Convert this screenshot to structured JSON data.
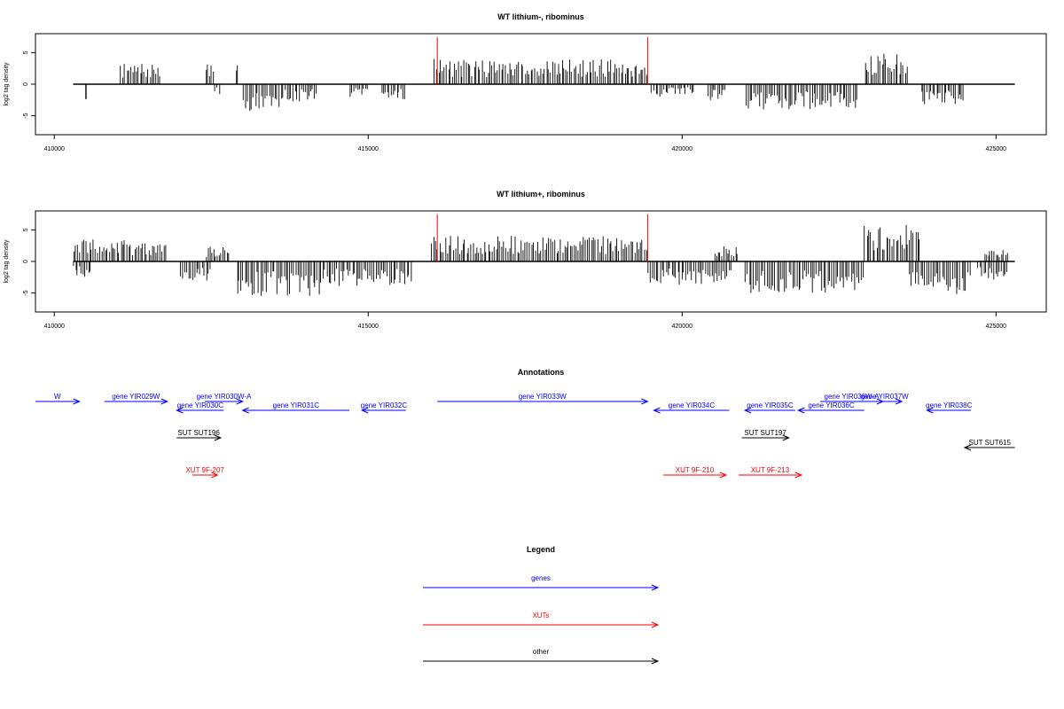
{
  "chart_data": [
    {
      "type": "bar",
      "title": "WT lithium-, ribominus",
      "xlabel": "",
      "ylabel": "log2 tag density",
      "xlim": [
        409700,
        425800
      ],
      "ylim": [
        -8,
        8
      ],
      "xticks": [
        410000,
        415000,
        420000,
        425000
      ],
      "yticks": [
        -5,
        0,
        5
      ],
      "x_range_drawn": [
        410300,
        425300
      ],
      "region_markers": [
        416100,
        419450
      ],
      "region_marker_color": "#ff0000",
      "bar_color": "#000000",
      "segments": [
        {
          "from": 410500,
          "to": 410510,
          "val": -2.0
        },
        {
          "from": 411050,
          "to": 411700,
          "val": 2.6
        },
        {
          "from": 412400,
          "to": 412550,
          "val": 2.5
        },
        {
          "from": 412550,
          "to": 412650,
          "val": -1.5
        },
        {
          "from": 412900,
          "to": 412920,
          "val": 2.6
        },
        {
          "from": 413000,
          "to": 413600,
          "val": -3.5
        },
        {
          "from": 413600,
          "to": 414200,
          "val": -2.2
        },
        {
          "from": 414700,
          "to": 415000,
          "val": -1.6
        },
        {
          "from": 415200,
          "to": 415600,
          "val": -2.0
        },
        {
          "from": 416050,
          "to": 419450,
          "val": 3.2
        },
        {
          "from": 419500,
          "to": 419700,
          "val": -2.0
        },
        {
          "from": 419700,
          "to": 420200,
          "val": -1.3
        },
        {
          "from": 420400,
          "to": 420700,
          "val": -2.0
        },
        {
          "from": 421000,
          "to": 422800,
          "val": -3.2
        },
        {
          "from": 422900,
          "to": 423600,
          "val": 4.0
        },
        {
          "from": 423800,
          "to": 424500,
          "val": -2.6
        }
      ],
      "seed": 7
    },
    {
      "type": "bar",
      "title": "WT lithium+, ribominus",
      "xlabel": "",
      "ylabel": "log2 tag density",
      "xlim": [
        409700,
        425800
      ],
      "ylim": [
        -8,
        8
      ],
      "xticks": [
        410000,
        415000,
        420000,
        425000
      ],
      "yticks": [
        -5,
        0,
        5
      ],
      "x_range_drawn": [
        410300,
        425300
      ],
      "region_markers": [
        416100,
        419450
      ],
      "region_marker_color": "#ff0000",
      "bar_color": "#000000",
      "segments": [
        {
          "from": 410300,
          "to": 410600,
          "val": -2.0
        },
        {
          "from": 410300,
          "to": 411800,
          "val": 2.8
        },
        {
          "from": 412000,
          "to": 412500,
          "val": -2.8
        },
        {
          "from": 412400,
          "to": 412800,
          "val": 2.0
        },
        {
          "from": 412900,
          "to": 414300,
          "val": -4.4
        },
        {
          "from": 414300,
          "to": 415700,
          "val": -3.2
        },
        {
          "from": 416000,
          "to": 419450,
          "val": 3.3
        },
        {
          "from": 419450,
          "to": 420800,
          "val": -3.0
        },
        {
          "from": 420500,
          "to": 420900,
          "val": 2.0
        },
        {
          "from": 421000,
          "to": 422900,
          "val": -4.0
        },
        {
          "from": 422900,
          "to": 423800,
          "val": 4.8
        },
        {
          "from": 423600,
          "to": 424600,
          "val": -4.2
        },
        {
          "from": 424700,
          "to": 425200,
          "val": -2.5
        },
        {
          "from": 424800,
          "to": 425200,
          "val": 1.5
        }
      ],
      "seed": 19
    }
  ],
  "annotations": {
    "title": "Annotations",
    "xlim": [
      409700,
      425800
    ],
    "genes": [
      {
        "label": "W",
        "from": 409700,
        "to": 410400,
        "dir": "right",
        "row": 0
      },
      {
        "label": "gene YIR029W",
        "from": 410800,
        "to": 411800,
        "dir": "right",
        "row": 0
      },
      {
        "label": "gene YIR030W-A",
        "from": 412400,
        "to": 413000,
        "dir": "right",
        "row": 0
      },
      {
        "label": "gene YIR030C",
        "from": 411950,
        "to": 412700,
        "dir": "left",
        "row": 1
      },
      {
        "label": "gene YIR031C",
        "from": 413000,
        "to": 414700,
        "dir": "left",
        "row": 1
      },
      {
        "label": "gene YIR032C",
        "from": 414900,
        "to": 415600,
        "dir": "left",
        "row": 1
      },
      {
        "label": "gene YIR033W",
        "from": 416100,
        "to": 419450,
        "dir": "right",
        "row": 0
      },
      {
        "label": "gene YIR034C",
        "from": 419550,
        "to": 420750,
        "dir": "left",
        "row": 1
      },
      {
        "label": "gene YIR035C",
        "from": 421000,
        "to": 421800,
        "dir": "left",
        "row": 1
      },
      {
        "label": "gene YIR036W-A",
        "from": 422200,
        "to": 423200,
        "dir": "right",
        "row": 0
      },
      {
        "label": "gene YIR037W",
        "from": 422950,
        "to": 423500,
        "dir": "right",
        "row": 0
      },
      {
        "label": "gene YIR036C",
        "from": 421850,
        "to": 422900,
        "dir": "left",
        "row": 1
      },
      {
        "label": "gene YIR038C",
        "from": 423900,
        "to": 424600,
        "dir": "left",
        "row": 1
      }
    ],
    "other": [
      {
        "label": "SUT SUT196",
        "from": 411950,
        "to": 412650,
        "dir": "right"
      },
      {
        "label": "SUT SUT197",
        "from": 420950,
        "to": 421700,
        "dir": "right"
      },
      {
        "label": "SUT SUT615",
        "from": 424500,
        "to": 425300,
        "dir": "left"
      }
    ],
    "xuts": [
      {
        "label": "XUT 9F-207",
        "from": 412200,
        "to": 412600,
        "dir": "right"
      },
      {
        "label": "XUT 9F-210",
        "from": 419700,
        "to": 420700,
        "dir": "right"
      },
      {
        "label": "XUT 9F-213",
        "from": 420900,
        "to": 421900,
        "dir": "right"
      }
    ],
    "colors": {
      "genes": "#0000ff",
      "xuts": "#ff0000",
      "other": "#000000"
    }
  },
  "legend": {
    "title": "Legend",
    "items": [
      {
        "label": "genes",
        "color": "#0000ff"
      },
      {
        "label": "XUTs",
        "color": "#ff0000"
      },
      {
        "label": "other",
        "color": "#000000"
      }
    ]
  }
}
